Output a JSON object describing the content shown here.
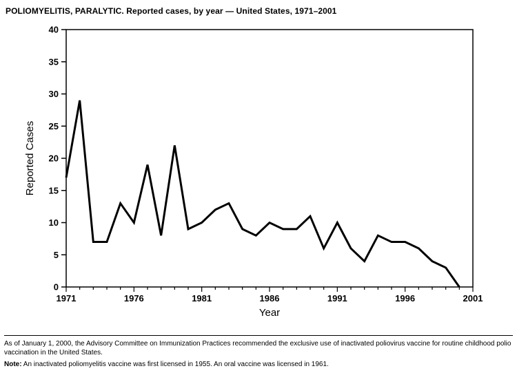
{
  "title": "POLIOMYELITIS, PARALYTIC. Reported cases, by year — United States, 1971–2001",
  "footnotes": {
    "line1": "As of January 1, 2000, the Advisory Committee on Immunization Practices recommended the exclusive use of inactivated poliovirus vaccine for routine childhood polio vaccination in the United States.",
    "note_label": "Note:",
    "note_text": " An inactivated poliomyelitis vaccine was first licensed in 1955. An oral vaccine was licensed in 1961."
  },
  "chart_data": {
    "type": "line",
    "title": "POLIOMYELITIS, PARALYTIC. Reported cases, by year — United States, 1971–2001",
    "xlabel": "Year",
    "ylabel": "Reported Cases",
    "x": [
      1971,
      1972,
      1973,
      1974,
      1975,
      1976,
      1977,
      1978,
      1979,
      1980,
      1981,
      1982,
      1983,
      1984,
      1985,
      1986,
      1987,
      1988,
      1989,
      1990,
      1991,
      1992,
      1993,
      1994,
      1995,
      1996,
      1997,
      1998,
      1999,
      2000
    ],
    "values": [
      17,
      29,
      7,
      7,
      13,
      10,
      19,
      8,
      22,
      9,
      10,
      12,
      13,
      9,
      8,
      10,
      9,
      9,
      11,
      6,
      10,
      6,
      4,
      8,
      7,
      7,
      6,
      4,
      3,
      0
    ],
    "xlim": [
      1971,
      2001
    ],
    "ylim": [
      0,
      40
    ],
    "ytick_interval": 5,
    "xtick_labels": [
      1971,
      1976,
      1981,
      1986,
      1991,
      1996,
      2001
    ],
    "grid": false,
    "legend": "none",
    "line_color": "#000000",
    "line_width": 3
  }
}
